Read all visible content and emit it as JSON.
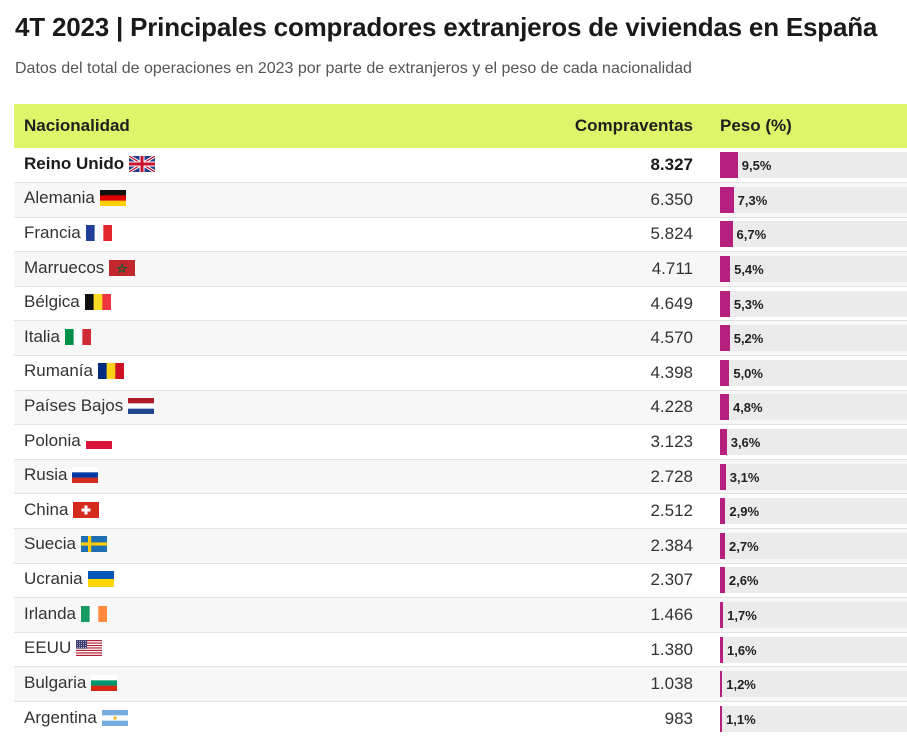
{
  "header": {
    "title": "4T 2023 | Principales compradores extranjeros de viviendas en España",
    "subtitle": "Datos del total de operaciones en 2023 por parte de extranjeros y el peso de cada nacionalidad"
  },
  "colors": {
    "header_bg": "#def469",
    "bar": "#b5207f",
    "bar_track": "#ebebeb"
  },
  "chart_data": {
    "type": "table",
    "title": "4T 2023 | Principales compradores extranjeros de viviendas en España",
    "columns": [
      "Nacionalidad",
      "Compraventas",
      "Peso (%)"
    ],
    "max_pct": 100,
    "rows": [
      {
        "country": "Reino Unido",
        "flag": "uk-flag-icon",
        "sales": "8.327",
        "pct": 9.5,
        "pct_label": "9,5%",
        "bold": true
      },
      {
        "country": "Alemania",
        "flag": "germany-flag-icon",
        "sales": "6.350",
        "pct": 7.3,
        "pct_label": "7,3%"
      },
      {
        "country": "Francia",
        "flag": "france-flag-icon",
        "sales": "5.824",
        "pct": 6.7,
        "pct_label": "6,7%"
      },
      {
        "country": "Marruecos",
        "flag": "morocco-flag-icon",
        "sales": "4.711",
        "pct": 5.4,
        "pct_label": "5,4%"
      },
      {
        "country": "Bélgica",
        "flag": "belgium-flag-icon",
        "sales": "4.649",
        "pct": 5.3,
        "pct_label": "5,3%"
      },
      {
        "country": "Italia",
        "flag": "italy-flag-icon",
        "sales": "4.570",
        "pct": 5.2,
        "pct_label": "5,2%"
      },
      {
        "country": "Rumanía",
        "flag": "romania-flag-icon",
        "sales": "4.398",
        "pct": 5.0,
        "pct_label": "5,0%"
      },
      {
        "country": "Países Bajos",
        "flag": "netherlands-flag-icon",
        "sales": "4.228",
        "pct": 4.8,
        "pct_label": "4,8%"
      },
      {
        "country": "Polonia",
        "flag": "poland-flag-icon",
        "sales": "3.123",
        "pct": 3.6,
        "pct_label": "3,6%"
      },
      {
        "country": "Rusia",
        "flag": "russia-flag-icon",
        "sales": "2.728",
        "pct": 3.1,
        "pct_label": "3,1%"
      },
      {
        "country": "China",
        "flag": "switzerland-flag-icon",
        "sales": "2.512",
        "pct": 2.9,
        "pct_label": "2,9%"
      },
      {
        "country": "Suecia",
        "flag": "sweden-flag-icon",
        "sales": "2.384",
        "pct": 2.7,
        "pct_label": "2,7%"
      },
      {
        "country": "Ucrania",
        "flag": "ukraine-flag-icon",
        "sales": "2.307",
        "pct": 2.6,
        "pct_label": "2,6%"
      },
      {
        "country": "Irlanda",
        "flag": "ireland-flag-icon",
        "sales": "1.466",
        "pct": 1.7,
        "pct_label": "1,7%"
      },
      {
        "country": "EEUU",
        "flag": "usa-flag-icon",
        "sales": "1.380",
        "pct": 1.6,
        "pct_label": "1,6%"
      },
      {
        "country": "Bulgaria",
        "flag": "bulgaria-flag-icon",
        "sales": "1.038",
        "pct": 1.2,
        "pct_label": "1,2%"
      },
      {
        "country": "Argentina",
        "flag": "argentina-flag-icon",
        "sales": "983",
        "pct": 1.1,
        "pct_label": "1,1%"
      }
    ]
  }
}
